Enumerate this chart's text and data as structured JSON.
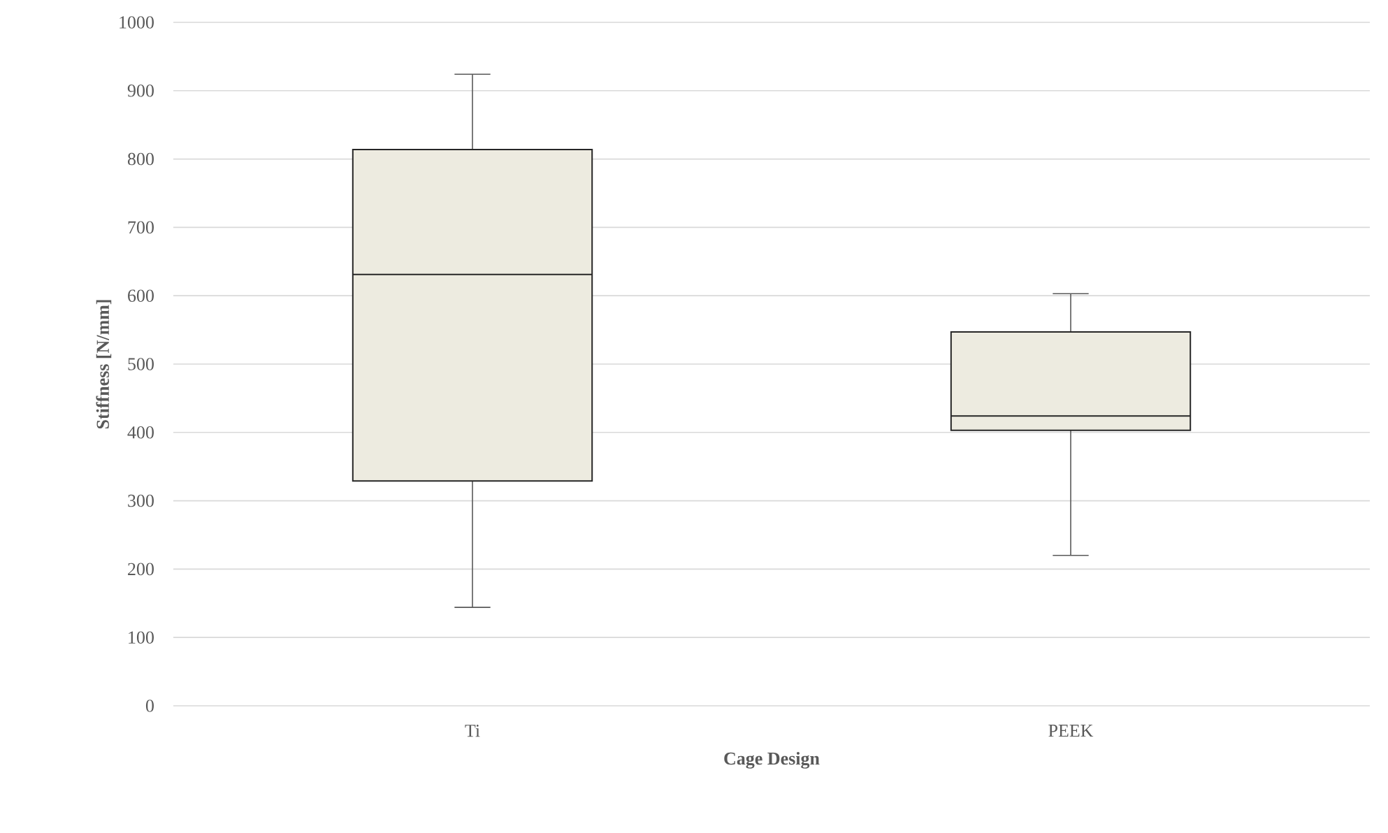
{
  "chart_data": {
    "type": "box",
    "xlabel": "Cage Design",
    "ylabel": "Stiffness [N/mm]",
    "categories": [
      "Ti",
      "PEEK"
    ],
    "boxes": [
      {
        "low": 144,
        "q1": 329,
        "median": 631,
        "q3": 814,
        "high": 924
      },
      {
        "low": 220,
        "q1": 403,
        "median": 424,
        "q3": 547,
        "high": 603
      }
    ],
    "color": "#edebe0",
    "ylim": [
      0,
      1000
    ],
    "yticks": [
      0,
      100,
      200,
      300,
      400,
      500,
      600,
      700,
      800,
      900,
      1000
    ],
    "grid": "y"
  }
}
